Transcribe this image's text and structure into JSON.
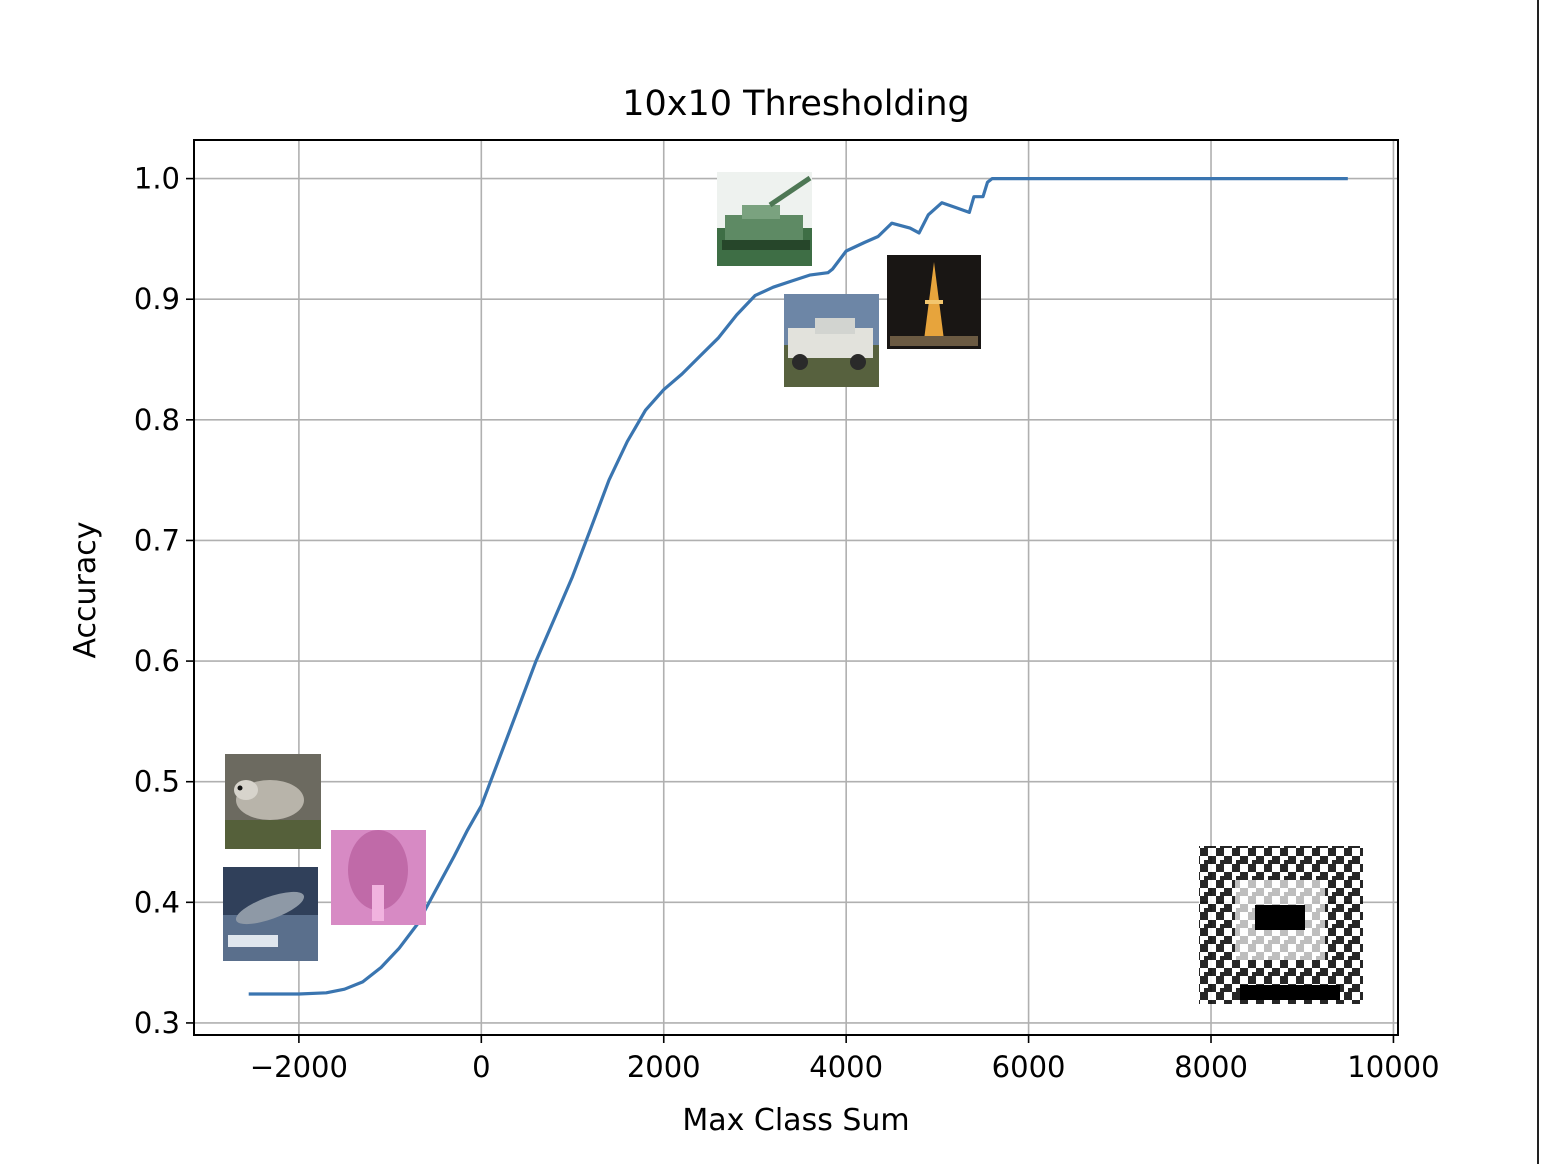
{
  "chart_data": {
    "type": "line",
    "title": "10x10 Thresholding",
    "xlabel": "Max Class Sum",
    "ylabel": "Accuracy",
    "xlim": [
      -3150,
      10050
    ],
    "ylim": [
      0.29,
      1.032
    ],
    "xticks": [
      -2000,
      0,
      2000,
      4000,
      6000,
      8000,
      10000
    ],
    "xtick_labels": [
      "−2000",
      "0",
      "2000",
      "4000",
      "6000",
      "8000",
      "10000"
    ],
    "yticks": [
      0.3,
      0.4,
      0.5,
      0.6,
      0.7,
      0.8,
      0.9,
      1.0
    ],
    "ytick_labels": [
      "0.3",
      "0.4",
      "0.5",
      "0.6",
      "0.7",
      "0.8",
      "0.9",
      "1.0"
    ],
    "grid": true,
    "series": [
      {
        "color": "#3a75b0",
        "x": [
          -2550,
          -2000,
          -1700,
          -1500,
          -1300,
          -1100,
          -900,
          -700,
          -500,
          -300,
          -150,
          0,
          200,
          400,
          600,
          800,
          1000,
          1200,
          1400,
          1600,
          1800,
          2000,
          2200,
          2400,
          2600,
          2800,
          3000,
          3200,
          3400,
          3600,
          3800,
          3850,
          4000,
          4200,
          4350,
          4500,
          4700,
          4800,
          4900,
          5050,
          5200,
          5350,
          5400,
          5500,
          5550,
          5600,
          6000,
          7000,
          8000,
          9000,
          9500
        ],
        "y": [
          0.324,
          0.324,
          0.325,
          0.328,
          0.334,
          0.346,
          0.362,
          0.382,
          0.41,
          0.438,
          0.46,
          0.48,
          0.52,
          0.56,
          0.6,
          0.635,
          0.67,
          0.71,
          0.75,
          0.782,
          0.808,
          0.825,
          0.838,
          0.853,
          0.868,
          0.887,
          0.903,
          0.91,
          0.915,
          0.92,
          0.922,
          0.925,
          0.94,
          0.947,
          0.952,
          0.963,
          0.959,
          0.955,
          0.97,
          0.98,
          0.976,
          0.972,
          0.985,
          0.985,
          0.997,
          1.0,
          1.0,
          1.0,
          1.0,
          1.0,
          1.0
        ]
      }
    ]
  },
  "thumbnails": [
    {
      "name": "tank-thumbnail",
      "icon": "tank-icon"
    },
    {
      "name": "truck-thumbnail",
      "icon": "truck-icon"
    },
    {
      "name": "eiffel-tower-thumbnail",
      "icon": "eiffel-tower-icon"
    },
    {
      "name": "opossum-thumbnail",
      "icon": "opossum-icon"
    },
    {
      "name": "pink-flower-thumbnail",
      "icon": "flower-icon"
    },
    {
      "name": "dolphin-thumbnail",
      "icon": "dolphin-icon"
    },
    {
      "name": "threshold-pattern-thumbnail",
      "icon": "binary-pattern-icon"
    }
  ]
}
